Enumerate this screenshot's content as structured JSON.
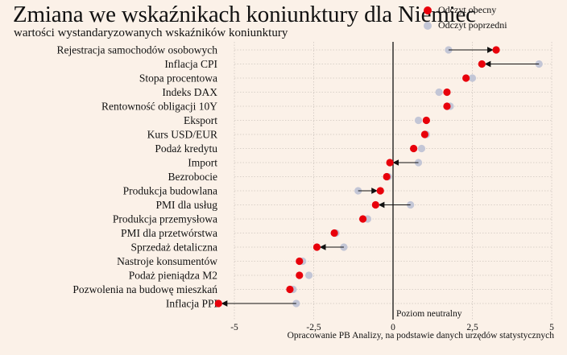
{
  "header": {
    "title": "Zmiana we wskaźnikach koniunktury dla Niemiec",
    "subtitle": "wartości wystandaryzowanych wskaźników koniunktury"
  },
  "legend": {
    "current": "Odczyt obecny",
    "previous": "Odczyt poprzedni"
  },
  "source": "Opracowanie PB Analizy, na podstawie danych urzędów statystycznych",
  "colors": {
    "current": "#e8000b",
    "previous": "#c3c6d6",
    "arrow": "#111111",
    "grid": "#cfc6bf",
    "background": "#fbf1e8"
  },
  "chart_data": {
    "type": "dumbbell",
    "categories": [
      "Rejestracja samochodów osobowych",
      "Inflacja CPI",
      "Stopa procentowa",
      "Indeks DAX",
      "Rentowność obligacji 10Y",
      "Eksport",
      "Kurs USD/EUR",
      "Podaż kredytu",
      "Import",
      "Bezrobocie",
      "Produkcja budowlana",
      "PMI dla usług",
      "Produkcja przemysłowa",
      "PMI dla przetwórstwa",
      "Sprzedaż detaliczna",
      "Nastroje konsumentów",
      "Podaż pieniądza M2",
      "Pozwolenia na budowę mieszkań",
      "Inflacja PPI"
    ],
    "series": [
      {
        "name": "Odczyt obecny",
        "values": [
          3.25,
          2.8,
          2.3,
          1.7,
          1.7,
          1.05,
          1.0,
          0.65,
          -0.1,
          -0.2,
          -0.4,
          -0.55,
          -0.95,
          -1.85,
          -2.4,
          -2.95,
          -2.95,
          -3.25,
          -5.5
        ]
      },
      {
        "name": "Odczyt poprzedni",
        "values": [
          1.75,
          4.6,
          2.5,
          1.45,
          1.8,
          0.8,
          1.05,
          0.9,
          0.8,
          -0.15,
          -1.1,
          0.55,
          -0.8,
          -1.8,
          -1.55,
          -2.85,
          -2.65,
          -3.15,
          -3.05
        ]
      }
    ],
    "xlim": [
      -5,
      5
    ],
    "xticks": [
      "-5",
      "-2,5",
      "0",
      "2,5",
      "5"
    ],
    "annotation": "Poziom neutralny"
  }
}
